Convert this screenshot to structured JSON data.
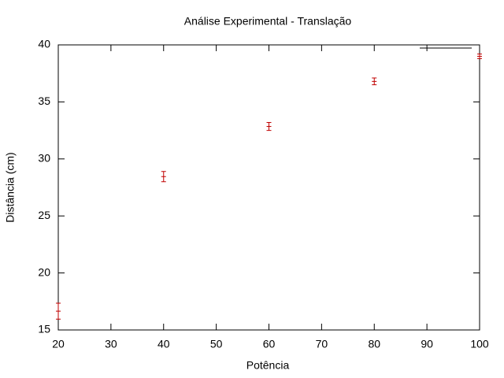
{
  "chart_data": {
    "type": "errorbar",
    "title": "Análise Experimental - Translação",
    "xlabel": "Potência",
    "ylabel": "Distância (cm)",
    "x": [
      20,
      40,
      60,
      80,
      100
    ],
    "series": [
      {
        "color": "#c00000",
        "values": [
          16.65,
          28.45,
          32.85,
          36.8,
          39.0
        ],
        "errors": [
          0.7,
          0.45,
          0.35,
          0.3,
          0.2
        ]
      }
    ],
    "xlim": [
      20,
      100
    ],
    "xticks": [
      20,
      30,
      40,
      50,
      60,
      70,
      80,
      90,
      100
    ],
    "ylim": [
      15,
      40
    ],
    "yticks": [
      15,
      20,
      25,
      30,
      35,
      40
    ],
    "grid": false
  }
}
